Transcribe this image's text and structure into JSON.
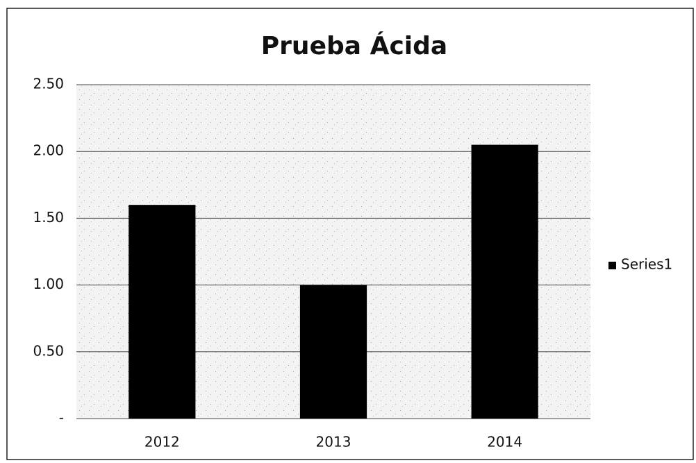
{
  "chart_data": {
    "type": "bar",
    "title": "Prueba Ácida",
    "categories": [
      "2012",
      "2013",
      "2014"
    ],
    "series": [
      {
        "name": "Series1",
        "color": "#000000",
        "values": [
          1.6,
          1.0,
          2.05
        ]
      }
    ],
    "ylim": [
      0,
      2.5
    ],
    "yticks": [
      {
        "value": 0,
        "label": "-"
      },
      {
        "value": 0.5,
        "label": "0.50"
      },
      {
        "value": 1,
        "label": "1.00"
      },
      {
        "value": 1.5,
        "label": "1.50"
      },
      {
        "value": 2,
        "label": "2.00"
      },
      {
        "value": 2.5,
        "label": "2.50"
      }
    ],
    "grid": true,
    "legend": "right"
  }
}
